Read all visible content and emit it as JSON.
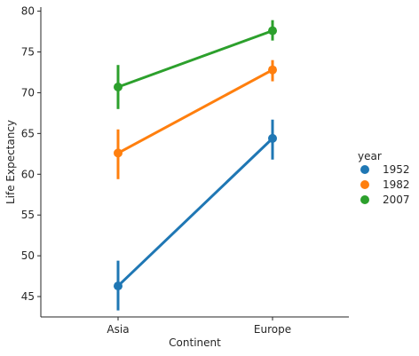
{
  "chart_data": {
    "type": "line",
    "title": "",
    "xlabel": "Continent",
    "ylabel": "Life Expectancy",
    "categories": [
      "Asia",
      "Europe"
    ],
    "ylim": [
      42.5,
      80.5
    ],
    "yticks": [
      45,
      50,
      55,
      60,
      65,
      70,
      75,
      80
    ],
    "grid": false,
    "legend": {
      "title": "year",
      "placement": "right"
    },
    "series": [
      {
        "name": "1952",
        "color": "#1f77b4",
        "values": [
          46.3,
          64.4
        ],
        "ci_low": [
          43.3,
          61.8
        ],
        "ci_high": [
          49.4,
          66.7
        ]
      },
      {
        "name": "1982",
        "color": "#ff7f0e",
        "values": [
          62.6,
          72.8
        ],
        "ci_low": [
          59.4,
          71.4
        ],
        "ci_high": [
          65.5,
          74.0
        ]
      },
      {
        "name": "2007",
        "color": "#2ca02c",
        "values": [
          70.7,
          77.6
        ],
        "ci_low": [
          68.0,
          76.4
        ],
        "ci_high": [
          73.4,
          78.9
        ]
      }
    ]
  }
}
